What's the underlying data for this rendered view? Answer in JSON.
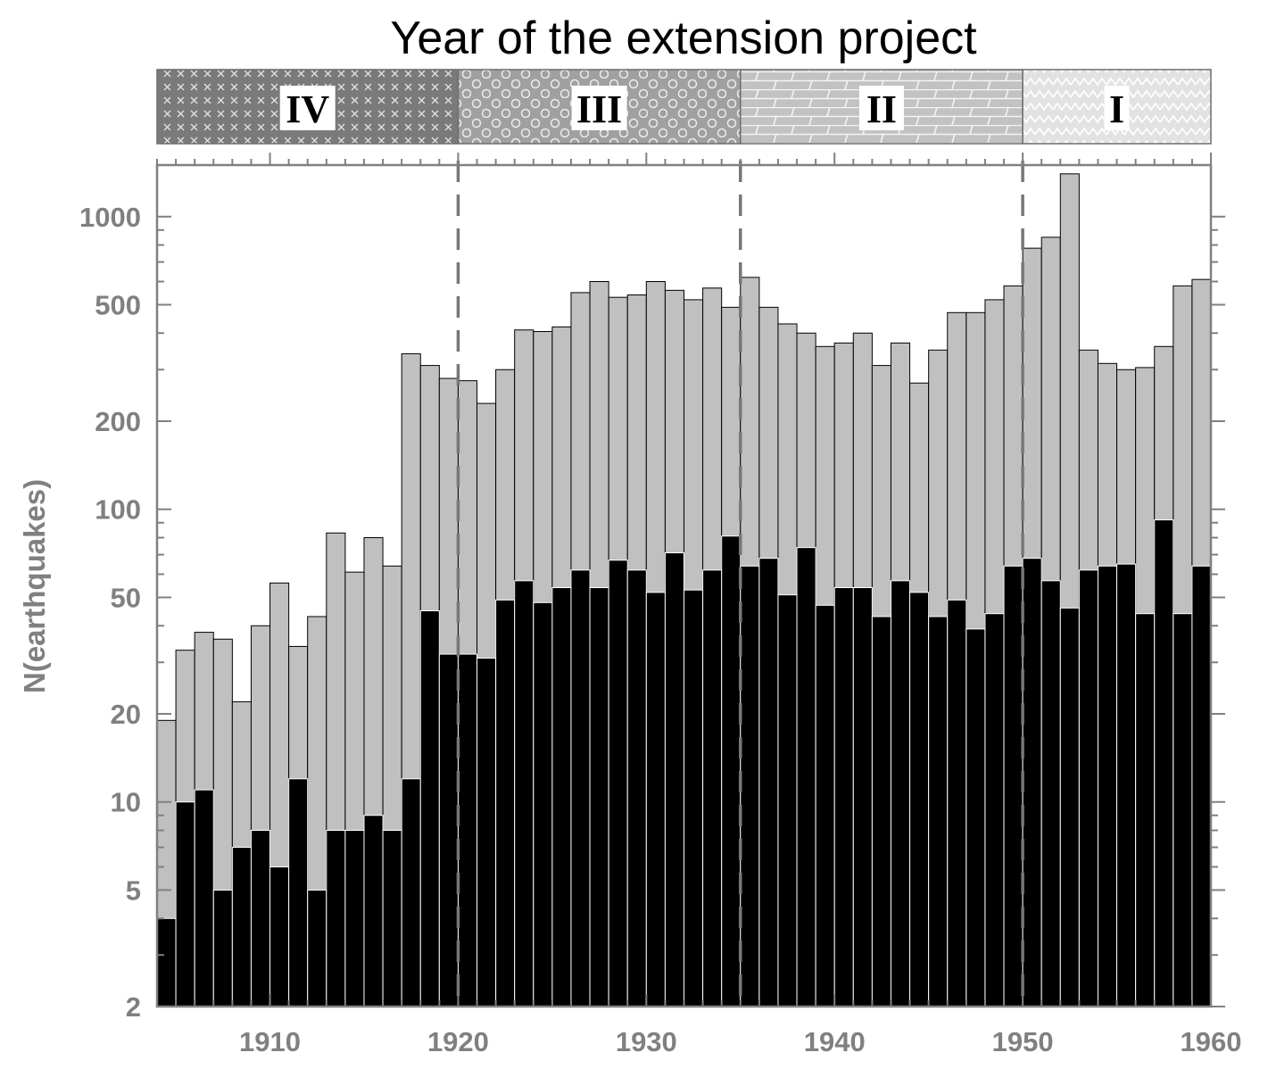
{
  "chart_data": {
    "type": "bar",
    "title": "Year of the extension project",
    "xlabel": "",
    "ylabel": "N(earthquakes)",
    "yscale": "log",
    "xlim": [
      1904,
      1960
    ],
    "ylim": [
      2,
      1500
    ],
    "x_ticks": [
      "1910",
      "1920",
      "1930",
      "1940",
      "1950",
      "1960"
    ],
    "y_ticks": [
      "2",
      "5",
      "10",
      "20",
      "50",
      "100",
      "200",
      "500",
      "1000"
    ],
    "grid": false,
    "legend": "none",
    "colors": {
      "total": "#c0c0c0",
      "subset": "#000000",
      "axes": "#808080"
    },
    "periods": [
      {
        "label": "IV",
        "start": 1904,
        "end": 1920,
        "pattern": "cross"
      },
      {
        "label": "III",
        "start": 1920,
        "end": 1935,
        "pattern": "circles"
      },
      {
        "label": "II",
        "start": 1935,
        "end": 1950,
        "pattern": "bricks"
      },
      {
        "label": "I",
        "start": 1950,
        "end": 1960,
        "pattern": "zigzag"
      }
    ],
    "boundaries": [
      1920,
      1935,
      1950
    ],
    "years": [
      1904,
      1905,
      1906,
      1907,
      1908,
      1909,
      1910,
      1911,
      1912,
      1913,
      1914,
      1915,
      1916,
      1917,
      1918,
      1919,
      1920,
      1921,
      1922,
      1923,
      1924,
      1925,
      1926,
      1927,
      1928,
      1929,
      1930,
      1931,
      1932,
      1933,
      1934,
      1935,
      1936,
      1937,
      1938,
      1939,
      1940,
      1941,
      1942,
      1943,
      1944,
      1945,
      1946,
      1947,
      1948,
      1949,
      1950,
      1951,
      1952,
      1953,
      1954,
      1955,
      1956,
      1957,
      1958,
      1959
    ],
    "series": [
      {
        "values": [
          19,
          33,
          38,
          36,
          22,
          40,
          56,
          34,
          43,
          83,
          61,
          80,
          64,
          340,
          310,
          280,
          275,
          230,
          300,
          410,
          405,
          420,
          550,
          600,
          530,
          540,
          600,
          560,
          520,
          570,
          490,
          620,
          490,
          430,
          400,
          360,
          370,
          400,
          310,
          370,
          270,
          350,
          470,
          470,
          520,
          580,
          780,
          850,
          1400,
          350,
          315,
          300,
          305,
          360,
          580,
          610
        ]
      },
      {
        "values": [
          4,
          10,
          11,
          5,
          7,
          8,
          6,
          12,
          5,
          8,
          8,
          9,
          8,
          12,
          45,
          32,
          32,
          31,
          49,
          57,
          48,
          54,
          62,
          54,
          67,
          62,
          52,
          71,
          53,
          62,
          81,
          64,
          68,
          51,
          74,
          47,
          54,
          54,
          43,
          57,
          52,
          43,
          49,
          39,
          44,
          64,
          68,
          57,
          46,
          62,
          64,
          65,
          44,
          92,
          44,
          64
        ]
      }
    ]
  }
}
